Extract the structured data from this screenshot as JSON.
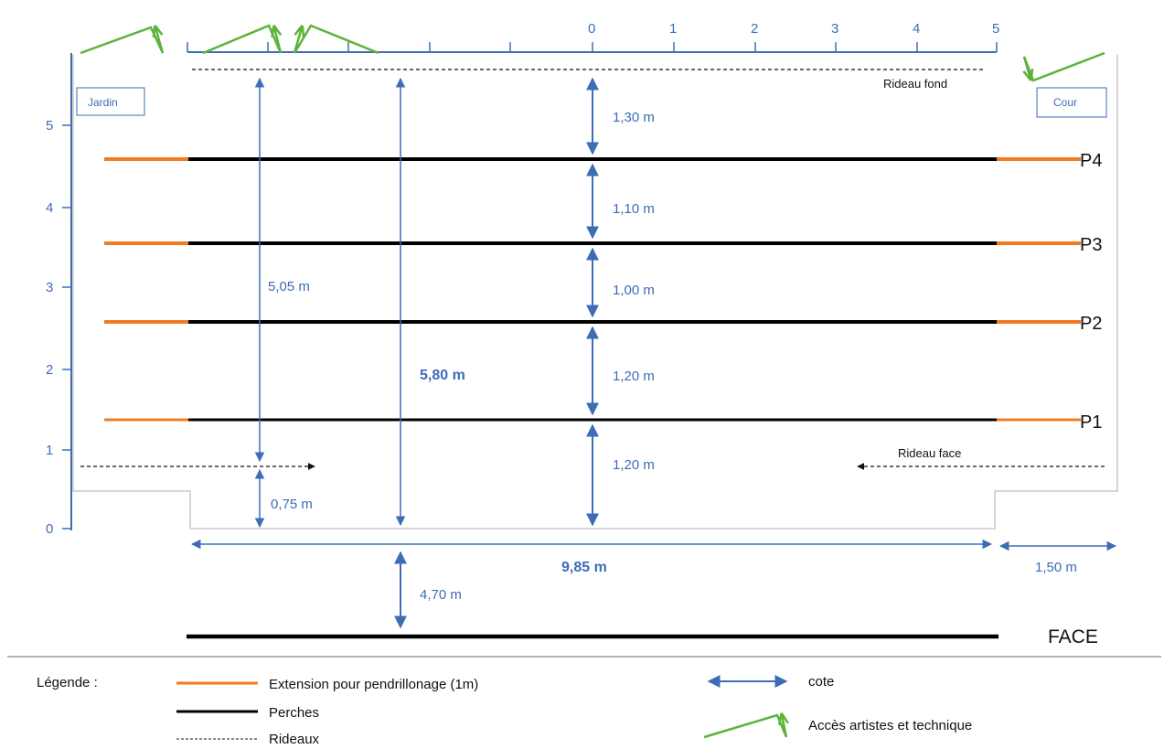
{
  "axis_top": {
    "ticks": [
      "0",
      "1",
      "2",
      "3",
      "4",
      "5"
    ]
  },
  "axis_left": {
    "ticks": [
      "0",
      "1",
      "2",
      "3",
      "4",
      "5"
    ]
  },
  "boxes": {
    "jardin": "Jardin",
    "cour": "Cour"
  },
  "curtains": {
    "fond": "Rideau fond",
    "face": "Rideau face"
  },
  "perches": [
    "P1",
    "P2",
    "P3",
    "P4"
  ],
  "dims": {
    "d130": "1,30 m",
    "d110": "1,10 m",
    "d100": "1,00 m",
    "d120a": "1,20 m",
    "d120b": "1,20 m",
    "d505": "5,05 m",
    "d580": "5,80 m",
    "d075": "0,75 m",
    "d985": "9,85 m",
    "d150": "1,50 m",
    "d470": "4,70 m"
  },
  "face_label": "FACE",
  "legend": {
    "title": "Légende :",
    "extension": "Extension pour pendrillonage (1m)",
    "perches": "Perches",
    "rideaux": "Rideaux",
    "cote": "cote",
    "acces": "Accès artistes et technique"
  },
  "colors": {
    "dimension": "#3d6db5",
    "perch": "#000000",
    "extension": "#f07b22",
    "access": "#5db33a",
    "outline": "#c9c9c9"
  },
  "icons": [
    "double-arrow-icon",
    "access-arrow-icon"
  ]
}
